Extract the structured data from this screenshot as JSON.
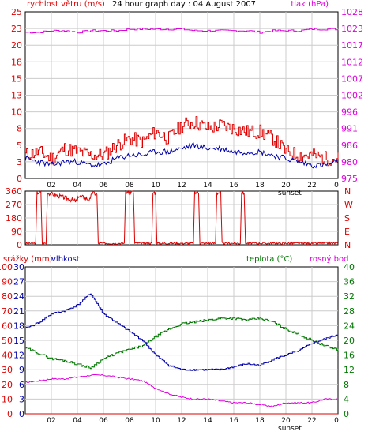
{
  "header": {
    "title": "24 hour graph day : 04 August 2007",
    "wind_label": "rychlost větru (m/s)",
    "pressure_label": "tlak (hPa)"
  },
  "colors": {
    "wind": "#dd0000",
    "wind_avg": "#0000aa",
    "pressure": "#dd00dd",
    "direction": "#dd0000",
    "humidity": "#0000aa",
    "temperature": "#007700",
    "dewpoint": "#dd00dd",
    "rain": "#dd0000",
    "frame": "#000000",
    "grid": "#cccccc"
  },
  "x_ticks": [
    "02",
    "04",
    "06",
    "08",
    "10",
    "12",
    "14",
    "16",
    "18",
    "20",
    "22",
    "0"
  ],
  "sunset_label": "sunset",
  "chart_data": [
    {
      "type": "line",
      "name": "wind-pressure",
      "title": "24 hour graph day : 04 August 2007",
      "x": [
        0,
        1,
        2,
        3,
        4,
        5,
        6,
        7,
        8,
        9,
        10,
        11,
        12,
        13,
        14,
        15,
        16,
        17,
        18,
        19,
        20,
        21,
        22,
        23,
        24
      ],
      "ylabel_left": "rychlost větru (m/s)",
      "ylabel_right": "tlak (hPa)",
      "y_ticks_left": [
        "0",
        "3",
        "5",
        "8",
        "10",
        "13",
        "15",
        "18",
        "20",
        "23",
        "25"
      ],
      "y_ticks_right": [
        "975",
        "980",
        "986",
        "991",
        "996",
        "1002",
        "1007",
        "1012",
        "1017",
        "1023",
        "1028"
      ],
      "ylim_left": [
        0,
        25
      ],
      "ylim_right": [
        975,
        1028
      ],
      "series": [
        {
          "role": "gust",
          "axis": "left",
          "values": [
            3.5,
            4.0,
            3.0,
            4.5,
            4.0,
            3.5,
            3.5,
            5.0,
            6.0,
            5.5,
            7.0,
            6.0,
            8.0,
            8.5,
            7.5,
            8.0,
            7.5,
            7.0,
            7.0,
            6.0,
            4.0,
            3.5,
            3.5,
            3.0,
            3.0
          ]
        },
        {
          "role": "average",
          "axis": "left",
          "values": [
            3.0,
            2.5,
            2.0,
            2.5,
            2.5,
            2.0,
            2.0,
            3.0,
            3.5,
            3.5,
            4.0,
            4.0,
            4.5,
            5.0,
            4.5,
            4.5,
            4.0,
            4.0,
            4.0,
            3.5,
            3.0,
            2.5,
            2.0,
            2.0,
            2.5
          ]
        },
        {
          "role": "pressure",
          "axis": "right",
          "values": [
            1021.5,
            1021.5,
            1022,
            1022,
            1021.5,
            1022,
            1022,
            1022,
            1022.5,
            1022.5,
            1022.5,
            1022.5,
            1022.5,
            1022,
            1022,
            1022,
            1022,
            1022,
            1021.5,
            1022,
            1022,
            1022,
            1022.5,
            1022.5,
            1022.5
          ]
        }
      ]
    },
    {
      "type": "line",
      "name": "wind-direction",
      "y_ticks_left": [
        "0",
        "90",
        "180",
        "270",
        "360"
      ],
      "y_ticks_right": [
        "N",
        "E",
        "S",
        "W",
        "N"
      ],
      "ylim": [
        0,
        360
      ],
      "series": [
        {
          "role": "direction",
          "x": [
            0,
            0.8,
            0.9,
            1.2,
            1.3,
            1.6,
            1.7,
            4.0,
            4.1,
            5.0,
            5.1,
            5.5,
            5.6,
            5.8,
            5.9,
            7.6,
            7.7,
            8.3,
            8.4,
            9.7,
            9.8,
            10.0,
            10.1,
            12.9,
            13.0,
            13.3,
            13.4,
            14.6,
            14.7,
            15.0,
            15.1,
            16.5,
            16.6,
            16.8,
            16.9,
            24
          ],
          "values": [
            10,
            10,
            350,
            350,
            10,
            10,
            350,
            290,
            330,
            300,
            350,
            340,
            10,
            10,
            10,
            10,
            355,
            355,
            10,
            10,
            350,
            350,
            10,
            10,
            350,
            350,
            10,
            10,
            350,
            350,
            10,
            10,
            350,
            350,
            10,
            10
          ]
        }
      ]
    },
    {
      "type": "line",
      "name": "rain-humidity-temperature",
      "x": [
        0,
        1,
        2,
        3,
        4,
        5,
        6,
        7,
        8,
        9,
        10,
        11,
        12,
        13,
        14,
        15,
        16,
        17,
        18,
        19,
        20,
        21,
        22,
        23,
        24
      ],
      "labels": [
        "srážky (mm)",
        "vlhkost",
        "teplota (°C)",
        "rosný bod"
      ],
      "y_ticks_rain": [
        "0",
        "10",
        "20",
        "30",
        "40",
        "50",
        "60",
        "70",
        "80",
        "90",
        "100"
      ],
      "y_ticks_humidity": [
        "0",
        "3",
        "6",
        "9",
        "12",
        "15",
        "18",
        "21",
        "24",
        "27",
        "30"
      ],
      "y_ticks_temp": [
        "0",
        "4",
        "8",
        "12",
        "16",
        "20",
        "24",
        "28",
        "32",
        "36",
        "40"
      ],
      "ylim_rain": [
        0,
        100
      ],
      "ylim_temp": [
        0,
        40
      ],
      "series": [
        {
          "role": "humidity",
          "axis": "rain",
          "values": [
            58,
            62,
            68,
            70,
            74,
            82,
            68,
            62,
            56,
            50,
            40,
            33,
            30,
            30,
            30,
            30,
            32,
            34,
            33,
            37,
            40,
            43,
            48,
            51,
            54
          ]
        },
        {
          "role": "temperature",
          "axis": "temp",
          "values": [
            18,
            16.5,
            15,
            14.5,
            13.5,
            12.5,
            15,
            16.5,
            17.5,
            18.5,
            21,
            23,
            24.5,
            25,
            25.5,
            26,
            26,
            25.5,
            26,
            25,
            23,
            21.5,
            20,
            18.5,
            17.5
          ]
        },
        {
          "role": "dewpoint",
          "axis": "temp",
          "values": [
            8.5,
            9,
            9.5,
            9.5,
            10,
            10.5,
            10.5,
            10,
            9.5,
            9,
            7,
            5.5,
            4.5,
            4,
            4,
            3.5,
            3,
            3,
            2.5,
            2,
            3,
            3,
            3,
            4,
            4
          ]
        },
        {
          "role": "rain",
          "axis": "rain",
          "values": [
            0,
            0,
            0,
            0,
            0,
            0,
            0,
            0,
            0,
            0,
            0,
            0,
            0,
            0,
            0,
            0,
            0,
            0,
            0,
            0,
            0,
            0,
            0,
            0,
            0
          ]
        }
      ]
    }
  ]
}
